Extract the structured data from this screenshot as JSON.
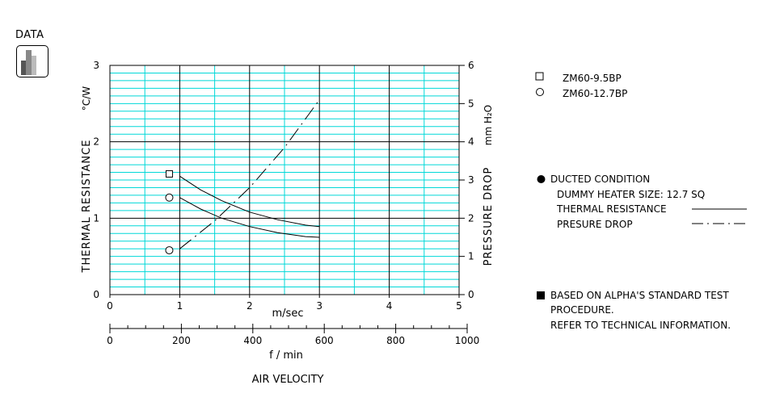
{
  "badge": {
    "label": "DATA"
  },
  "chart_data": {
    "type": "line",
    "x_label": "m/sec",
    "x_ticks": [
      "0",
      "1",
      "2",
      "3",
      "4",
      "5"
    ],
    "x_range": [
      0,
      5
    ],
    "x2_label": "f / min",
    "x2_ticks": [
      "0",
      "200",
      "400",
      "600",
      "800",
      "1000"
    ],
    "x2_range": [
      0,
      1000
    ],
    "y_left_label": "THERMAL  RESISTANCE",
    "y_left_unit": "°C/W",
    "y_left_ticks": [
      "0",
      "1",
      "2",
      "3"
    ],
    "y_left_range": [
      0,
      3
    ],
    "y_right_label": "PRESSURE  DROP",
    "y_right_unit": "mm H₂O",
    "y_right_ticks": [
      "0",
      "1",
      "2",
      "3",
      "4",
      "5",
      "6"
    ],
    "y_right_range": [
      0,
      6
    ],
    "grid": true,
    "bottom_title": "AIR VELOCITY",
    "series": [
      {
        "name": "ZM60-9.5BP",
        "kind": "thermal_resistance",
        "axis": "left",
        "marker": "square",
        "x": [
          1.0,
          1.3,
          1.6,
          2.0,
          2.4,
          2.8,
          3.0
        ],
        "y": [
          1.55,
          1.37,
          1.23,
          1.08,
          0.98,
          0.91,
          0.89
        ]
      },
      {
        "name": "ZM60-12.7BP",
        "kind": "thermal_resistance",
        "axis": "left",
        "marker": "circle",
        "x": [
          1.0,
          1.3,
          1.6,
          2.0,
          2.4,
          2.8,
          3.0
        ],
        "y": [
          1.27,
          1.12,
          1.0,
          0.89,
          0.81,
          0.76,
          0.75
        ]
      },
      {
        "name": "pressure_drop",
        "kind": "pressure_drop",
        "axis": "right",
        "marker": "none",
        "x": [
          1.0,
          1.5,
          2.0,
          2.5,
          3.0
        ],
        "y": [
          1.2,
          1.93,
          2.8,
          3.85,
          5.1
        ]
      }
    ],
    "markers": [
      {
        "symbol": "square",
        "x": 0.85,
        "y": 1.58
      },
      {
        "symbol": "circle",
        "x": 0.85,
        "y": 1.27
      },
      {
        "symbol": "circle",
        "x": 0.85,
        "y": 0.58
      }
    ]
  },
  "legend": {
    "items": [
      {
        "symbol": "square",
        "label": "ZM60-9.5BP"
      },
      {
        "symbol": "circle",
        "label": "ZM60-12.7BP"
      }
    ]
  },
  "conditions": {
    "title": "DUCTED CONDITION",
    "heater": "DUMMY HEATER SIZE:  12.7 SQ",
    "thermal_label": "THERMAL RESISTANCE",
    "pressure_label": "PRESURE DROP"
  },
  "note": {
    "line1": "BASED ON ALPHA'S STANDARD TEST",
    "line2": "PROCEDURE.",
    "line3": "REFER TO TECHNICAL INFORMATION."
  },
  "colors": {
    "grid": "#00d8d8",
    "ink": "#000000"
  }
}
